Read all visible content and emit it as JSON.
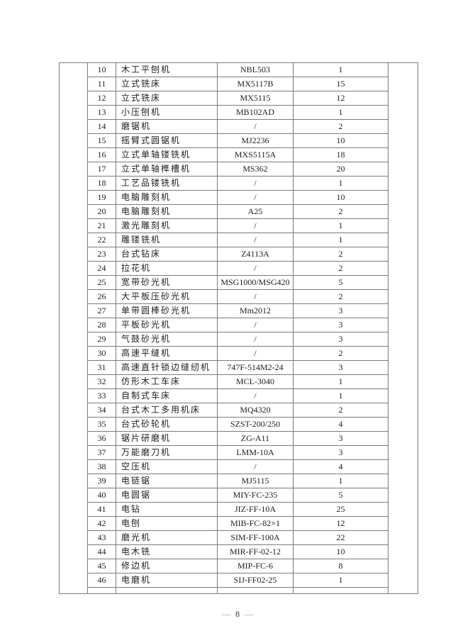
{
  "colors": {
    "border": "#7b7b7b",
    "text": "#1c1c1c",
    "footer_dash": "#9a9a9a"
  },
  "footer": {
    "dash_left": "—",
    "page_number": "8",
    "dash_right": "—"
  },
  "table": {
    "rows": [
      {
        "no": "10",
        "name": "木工平刨机",
        "model": "NBL503",
        "qty": "1"
      },
      {
        "no": "11",
        "name": "立式铣床",
        "model": "MX5117B",
        "qty": "15"
      },
      {
        "no": "12",
        "name": "立式铣床",
        "model": "MX5115",
        "qty": "12"
      },
      {
        "no": "13",
        "name": "小压刨机",
        "model": "MB102AD",
        "qty": "1"
      },
      {
        "no": "14",
        "name": "磨锯机",
        "model": "/",
        "qty": "2"
      },
      {
        "no": "15",
        "name": "摇臂式圆锯机",
        "model": "MJ2236",
        "qty": "10"
      },
      {
        "no": "16",
        "name": "立式单轴镂铣机",
        "model": "MXS5115A",
        "qty": "18"
      },
      {
        "no": "17",
        "name": "立式单轴榫槽机",
        "model": "MS362",
        "qty": "20"
      },
      {
        "no": "18",
        "name": "工艺品镂铣机",
        "model": "/",
        "qty": "1"
      },
      {
        "no": "19",
        "name": "电脑雕刻机",
        "model": "/",
        "qty": "10"
      },
      {
        "no": "20",
        "name": "电脑雕刻机",
        "model": "A25",
        "qty": "2"
      },
      {
        "no": "21",
        "name": "激光雕刻机",
        "model": "/",
        "qty": "1"
      },
      {
        "no": "22",
        "name": "雕镂铣机",
        "model": "/",
        "qty": "1"
      },
      {
        "no": "23",
        "name": "台式钻床",
        "model": "Z4113A",
        "qty": "2"
      },
      {
        "no": "24",
        "name": "拉花机",
        "model": "/",
        "qty": "2"
      },
      {
        "no": "25",
        "name": "宽带砂光机",
        "model": "MSG1000/MSG420",
        "qty": "5"
      },
      {
        "no": "26",
        "name": "大平板压砂光机",
        "model": "/",
        "qty": "2"
      },
      {
        "no": "27",
        "name": "单带圆棒砂光机",
        "model": "Mm2012",
        "qty": "3"
      },
      {
        "no": "28",
        "name": "平板砂光机",
        "model": "/",
        "qty": "3"
      },
      {
        "no": "29",
        "name": "气鼓砂光机",
        "model": "/",
        "qty": "3"
      },
      {
        "no": "30",
        "name": "高速平缝机",
        "model": "/",
        "qty": "2"
      },
      {
        "no": "31",
        "name": "高速直针锁边缝纫机",
        "model": "747F-514M2-24",
        "qty": "3"
      },
      {
        "no": "32",
        "name": "仿形木工车床",
        "model": "MCL-3040",
        "qty": "1"
      },
      {
        "no": "33",
        "name": "自制式车床",
        "model": "/",
        "qty": "1"
      },
      {
        "no": "34",
        "name": "台式木工多用机床",
        "model": "MQ4320",
        "qty": "2"
      },
      {
        "no": "35",
        "name": "台式砂轮机",
        "model": "SZST-200/250",
        "qty": "4"
      },
      {
        "no": "36",
        "name": "锯片研磨机",
        "model": "ZG-A11",
        "qty": "3"
      },
      {
        "no": "37",
        "name": "万能磨刀机",
        "model": "LMM-10A",
        "qty": "3"
      },
      {
        "no": "38",
        "name": "空压机",
        "model": "/",
        "qty": "4"
      },
      {
        "no": "39",
        "name": "电链锯",
        "model": "MJ5115",
        "qty": "1"
      },
      {
        "no": "40",
        "name": "电圆锯",
        "model": "MIY-FC-235",
        "qty": "5"
      },
      {
        "no": "41",
        "name": "电钻",
        "model": "JIZ-FF-10A",
        "qty": "25"
      },
      {
        "no": "42",
        "name": "电刨",
        "model": "MIB-FC-82×1",
        "qty": "12"
      },
      {
        "no": "43",
        "name": "磨光机",
        "model": "SIM-FF-100A",
        "qty": "22"
      },
      {
        "no": "44",
        "name": "电木铣",
        "model": "MIR-FF-02-12",
        "qty": "10"
      },
      {
        "no": "45",
        "name": "修边机",
        "model": "MIP-FC-6",
        "qty": "8"
      },
      {
        "no": "46",
        "name": "电磨机",
        "model": "SIJ-FF02-25",
        "qty": "1"
      }
    ]
  }
}
